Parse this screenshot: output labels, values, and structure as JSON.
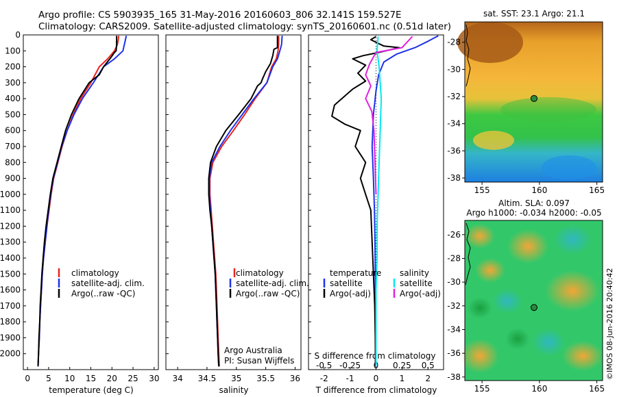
{
  "header": {
    "line1": "Argo profile: CS 5903935_165 31-May-2016 20160603_806 32.141S 159.527E",
    "line2": "Climatology: CARS2009. Satellite-adjusted climatology: synTS_20160601.nc (0.51d later)"
  },
  "colors": {
    "climatology": "#e8231f",
    "satellite": "#1d31e8",
    "argo": "#000000",
    "satellite_salinity": "#00e8f0",
    "argo_salinity": "#e020e0"
  },
  "chart_data": [
    {
      "id": "temperature",
      "type": "line",
      "xlabel": "temperature (deg C)",
      "xlim": [
        -1,
        31
      ],
      "xticks": [
        0,
        5,
        10,
        15,
        20,
        25,
        30
      ],
      "ylim": [
        2100,
        0
      ],
      "yticks": [
        0,
        100,
        200,
        300,
        400,
        500,
        600,
        700,
        800,
        900,
        1000,
        1100,
        1200,
        1300,
        1400,
        1500,
        1600,
        1700,
        1800,
        1900,
        2000
      ],
      "legend": [
        "climatology",
        "satellite-adj. clim.",
        "Argo(..raw -QC)"
      ],
      "series": [
        {
          "name": "climatology",
          "color": "#e8231f",
          "points": [
            [
              21.6,
              5
            ],
            [
              21.5,
              30
            ],
            [
              21.3,
              60
            ],
            [
              20.6,
              100
            ],
            [
              19,
              150
            ],
            [
              17,
              200
            ],
            [
              15,
              300
            ],
            [
              12.6,
              400
            ],
            [
              10.8,
              500
            ],
            [
              9.4,
              600
            ],
            [
              8.2,
              700
            ],
            [
              7.2,
              800
            ],
            [
              6.2,
              900
            ],
            [
              5.6,
              1000
            ],
            [
              5.1,
              1100
            ],
            [
              4.6,
              1200
            ],
            [
              4.2,
              1300
            ],
            [
              3.8,
              1400
            ],
            [
              3.5,
              1500
            ],
            [
              3.3,
              1600
            ],
            [
              3.1,
              1700
            ],
            [
              2.9,
              1800
            ],
            [
              2.8,
              1900
            ],
            [
              2.6,
              2000
            ],
            [
              2.5,
              2080
            ]
          ]
        },
        {
          "name": "satellite-adj. clim.",
          "color": "#1d31e8",
          "points": [
            [
              23.4,
              5
            ],
            [
              23.2,
              30
            ],
            [
              22.6,
              100
            ],
            [
              20.6,
              150
            ],
            [
              18,
              200
            ],
            [
              15.6,
              300
            ],
            [
              13,
              400
            ],
            [
              11,
              500
            ],
            [
              9.4,
              600
            ],
            [
              8.1,
              700
            ],
            [
              7.1,
              800
            ],
            [
              6.1,
              900
            ],
            [
              5.5,
              1000
            ],
            [
              5,
              1100
            ],
            [
              4.6,
              1200
            ],
            [
              4.2,
              1300
            ],
            [
              3.8,
              1400
            ],
            [
              3.5,
              1500
            ],
            [
              3.3,
              1600
            ],
            [
              3.1,
              1700
            ],
            [
              2.9,
              1800
            ],
            [
              2.8,
              1900
            ],
            [
              2.6,
              2000
            ],
            [
              2.5,
              2080
            ]
          ]
        },
        {
          "name": "Argo(..raw -QC)",
          "color": "#000000",
          "points": [
            [
              21.1,
              5
            ],
            [
              21.1,
              60
            ],
            [
              21,
              100
            ],
            [
              20.6,
              110
            ],
            [
              19.8,
              140
            ],
            [
              18,
              200
            ],
            [
              17,
              250
            ],
            [
              14.6,
              300
            ],
            [
              12.2,
              400
            ],
            [
              10.4,
              500
            ],
            [
              9,
              600
            ],
            [
              8,
              700
            ],
            [
              7,
              800
            ],
            [
              6,
              900
            ],
            [
              5.4,
              1000
            ],
            [
              4.9,
              1100
            ],
            [
              4.4,
              1200
            ],
            [
              4,
              1300
            ],
            [
              3.7,
              1400
            ],
            [
              3.4,
              1500
            ],
            [
              3.2,
              1600
            ],
            [
              3,
              1700
            ],
            [
              2.9,
              1800
            ],
            [
              2.7,
              1900
            ],
            [
              2.6,
              2000
            ],
            [
              2.5,
              2080
            ]
          ]
        }
      ]
    },
    {
      "id": "salinity",
      "type": "line",
      "xlabel": "salinity",
      "xlim": [
        33.8,
        36.1
      ],
      "xticks": [
        34,
        34.5,
        35,
        35.5,
        36
      ],
      "legend": [
        "climatology",
        "satellite-adj. clim.",
        "Argo(..raw -QC)"
      ],
      "annotation": [
        "Argo Australia",
        "PI: Susan Wijffels"
      ],
      "series": [
        {
          "name": "climatology",
          "color": "#e8231f",
          "points": [
            [
              35.72,
              5
            ],
            [
              35.72,
              60
            ],
            [
              35.71,
              100
            ],
            [
              35.68,
              150
            ],
            [
              35.6,
              200
            ],
            [
              35.52,
              300
            ],
            [
              35.32,
              400
            ],
            [
              35.14,
              500
            ],
            [
              34.95,
              600
            ],
            [
              34.75,
              700
            ],
            [
              34.6,
              800
            ],
            [
              34.55,
              900
            ],
            [
              34.55,
              1000
            ],
            [
              34.57,
              1100
            ],
            [
              34.59,
              1200
            ],
            [
              34.61,
              1300
            ],
            [
              34.63,
              1400
            ],
            [
              34.65,
              1500
            ],
            [
              34.66,
              1600
            ],
            [
              34.67,
              1700
            ],
            [
              34.68,
              1800
            ],
            [
              34.69,
              1900
            ],
            [
              34.7,
              2000
            ],
            [
              34.71,
              2080
            ]
          ]
        },
        {
          "name": "satellite-adj. clim.",
          "color": "#1d31e8",
          "points": [
            [
              35.78,
              5
            ],
            [
              35.77,
              60
            ],
            [
              35.74,
              100
            ],
            [
              35.7,
              150
            ],
            [
              35.62,
              200
            ],
            [
              35.52,
              300
            ],
            [
              35.3,
              400
            ],
            [
              35.1,
              500
            ],
            [
              34.9,
              600
            ],
            [
              34.72,
              700
            ],
            [
              34.58,
              800
            ],
            [
              34.54,
              900
            ],
            [
              34.54,
              1000
            ],
            [
              34.56,
              1100
            ],
            [
              34.58,
              1200
            ],
            [
              34.6,
              1300
            ],
            [
              34.62,
              1400
            ],
            [
              34.64,
              1500
            ],
            [
              34.65,
              1600
            ],
            [
              34.66,
              1700
            ],
            [
              34.67,
              1800
            ],
            [
              34.68,
              1900
            ],
            [
              34.69,
              2000
            ],
            [
              34.7,
              2080
            ]
          ]
        },
        {
          "name": "Argo(..raw -QC)",
          "color": "#000000",
          "points": [
            [
              35.7,
              5
            ],
            [
              35.7,
              80
            ],
            [
              35.64,
              90
            ],
            [
              35.62,
              130
            ],
            [
              35.58,
              180
            ],
            [
              35.5,
              230
            ],
            [
              35.44,
              280
            ],
            [
              35.42,
              300
            ],
            [
              35.36,
              320
            ],
            [
              35.25,
              400
            ],
            [
              35.04,
              500
            ],
            [
              34.82,
              600
            ],
            [
              34.66,
              700
            ],
            [
              34.56,
              800
            ],
            [
              34.53,
              900
            ],
            [
              34.53,
              1000
            ],
            [
              34.55,
              1100
            ],
            [
              34.58,
              1200
            ],
            [
              34.6,
              1300
            ],
            [
              34.62,
              1400
            ],
            [
              34.64,
              1500
            ],
            [
              34.65,
              1600
            ],
            [
              34.66,
              1700
            ],
            [
              34.67,
              1800
            ],
            [
              34.68,
              1900
            ],
            [
              34.69,
              2000
            ],
            [
              34.7,
              2080
            ]
          ]
        }
      ]
    },
    {
      "id": "differences",
      "type": "line",
      "xlabel": "T difference from climatology",
      "xlabel_top": "S difference from climatology",
      "xlim": [
        -2.6,
        2.6
      ],
      "xticks": [
        -2,
        -1,
        0,
        1,
        2
      ],
      "xticks_salinity": [
        "-0.5",
        "-0.25",
        "0",
        "0.25",
        "0.5"
      ],
      "legend_left_title": "temperature",
      "legend_right_title": "salinity",
      "legend_left": [
        "satellite",
        "Argo(-adj)"
      ],
      "legend_right": [
        "satellite",
        "Argo(-adj)"
      ],
      "series": [
        {
          "name": "temperature satellite",
          "color": "#1d31e8",
          "points": [
            [
              2.4,
              5
            ],
            [
              2,
              40
            ],
            [
              1.5,
              80
            ],
            [
              0.8,
              120
            ],
            [
              0.3,
              170
            ],
            [
              0.1,
              250
            ],
            [
              0,
              350
            ],
            [
              -0.1,
              500
            ],
            [
              -0.15,
              700
            ],
            [
              -0.1,
              900
            ],
            [
              -0.06,
              1100
            ],
            [
              -0.04,
              1300
            ],
            [
              -0.03,
              1500
            ],
            [
              -0.02,
              1700
            ],
            [
              -0.02,
              1900
            ],
            [
              -0.02,
              2080
            ]
          ]
        },
        {
          "name": "temperature Argo(-adj)",
          "color": "#000000",
          "points": [
            [
              0,
              10
            ],
            [
              -0.2,
              30
            ],
            [
              0.3,
              70
            ],
            [
              0.9,
              80
            ],
            [
              0.1,
              110
            ],
            [
              -0.5,
              130
            ],
            [
              -0.9,
              150
            ],
            [
              -0.4,
              190
            ],
            [
              -0.7,
              240
            ],
            [
              -0.4,
              290
            ],
            [
              -0.9,
              340
            ],
            [
              -1.6,
              440
            ],
            [
              -1.7,
              510
            ],
            [
              -1.2,
              560
            ],
            [
              -0.6,
              600
            ],
            [
              -0.8,
              700
            ],
            [
              -0.4,
              800
            ],
            [
              -0.6,
              900
            ],
            [
              -0.4,
              1000
            ],
            [
              -0.2,
              1100
            ],
            [
              -0.15,
              1300
            ],
            [
              -0.1,
              1500
            ],
            [
              -0.05,
              1700
            ],
            [
              -0.03,
              1900
            ],
            [
              -0.02,
              2080
            ]
          ]
        },
        {
          "name": "salinity satellite",
          "color": "#00e8f0",
          "points": [
            [
              0.02,
              10
            ],
            [
              0.01,
              100
            ],
            [
              0.03,
              200
            ],
            [
              0.05,
              400
            ],
            [
              0.04,
              600
            ],
            [
              0.03,
              800
            ],
            [
              0.02,
              1000
            ],
            [
              0.01,
              1200
            ],
            [
              0.01,
              1400
            ],
            [
              0.0,
              1600
            ],
            [
              0.0,
              1800
            ],
            [
              0.0,
              2080
            ]
          ]
        },
        {
          "name": "salinity Argo(-adj)",
          "color": "#e020e0",
          "points": [
            [
              0.35,
              10
            ],
            [
              0.25,
              80
            ],
            [
              0.0,
              110
            ],
            [
              -0.06,
              180
            ],
            [
              -0.1,
              250
            ],
            [
              -0.05,
              320
            ],
            [
              -0.1,
              400
            ],
            [
              -0.04,
              480
            ],
            [
              -0.02,
              600
            ],
            [
              -0.01,
              800
            ],
            [
              0.0,
              1000
            ]
          ]
        }
      ]
    },
    {
      "id": "sst-map",
      "type": "heatmap",
      "title": "sat. SST: 23.1  Argo: 21.1",
      "xticks": [
        155,
        160,
        165
      ],
      "yticks": [
        -28,
        -30,
        -32,
        -34,
        -36,
        -38
      ],
      "xlim": [
        153.5,
        165.5
      ],
      "ylim": [
        -38.3,
        -26.5
      ],
      "float_position": [
        159.53,
        -32.14
      ]
    },
    {
      "id": "sla-map",
      "type": "heatmap",
      "title_lines": [
        "Altim. SLA: 0.097",
        "Argo h1000: -0.034  h2000: -0.05"
      ],
      "xticks": [
        155,
        160,
        165
      ],
      "yticks": [
        -26,
        -28,
        -30,
        -32,
        -34,
        -36,
        -38
      ],
      "xlim": [
        153.5,
        165.5
      ],
      "ylim": [
        -38.3,
        -24.8
      ],
      "float_position": [
        159.53,
        -32.14
      ]
    }
  ],
  "side_label": "©IMOS 08-Jun-2016 20:40:42"
}
